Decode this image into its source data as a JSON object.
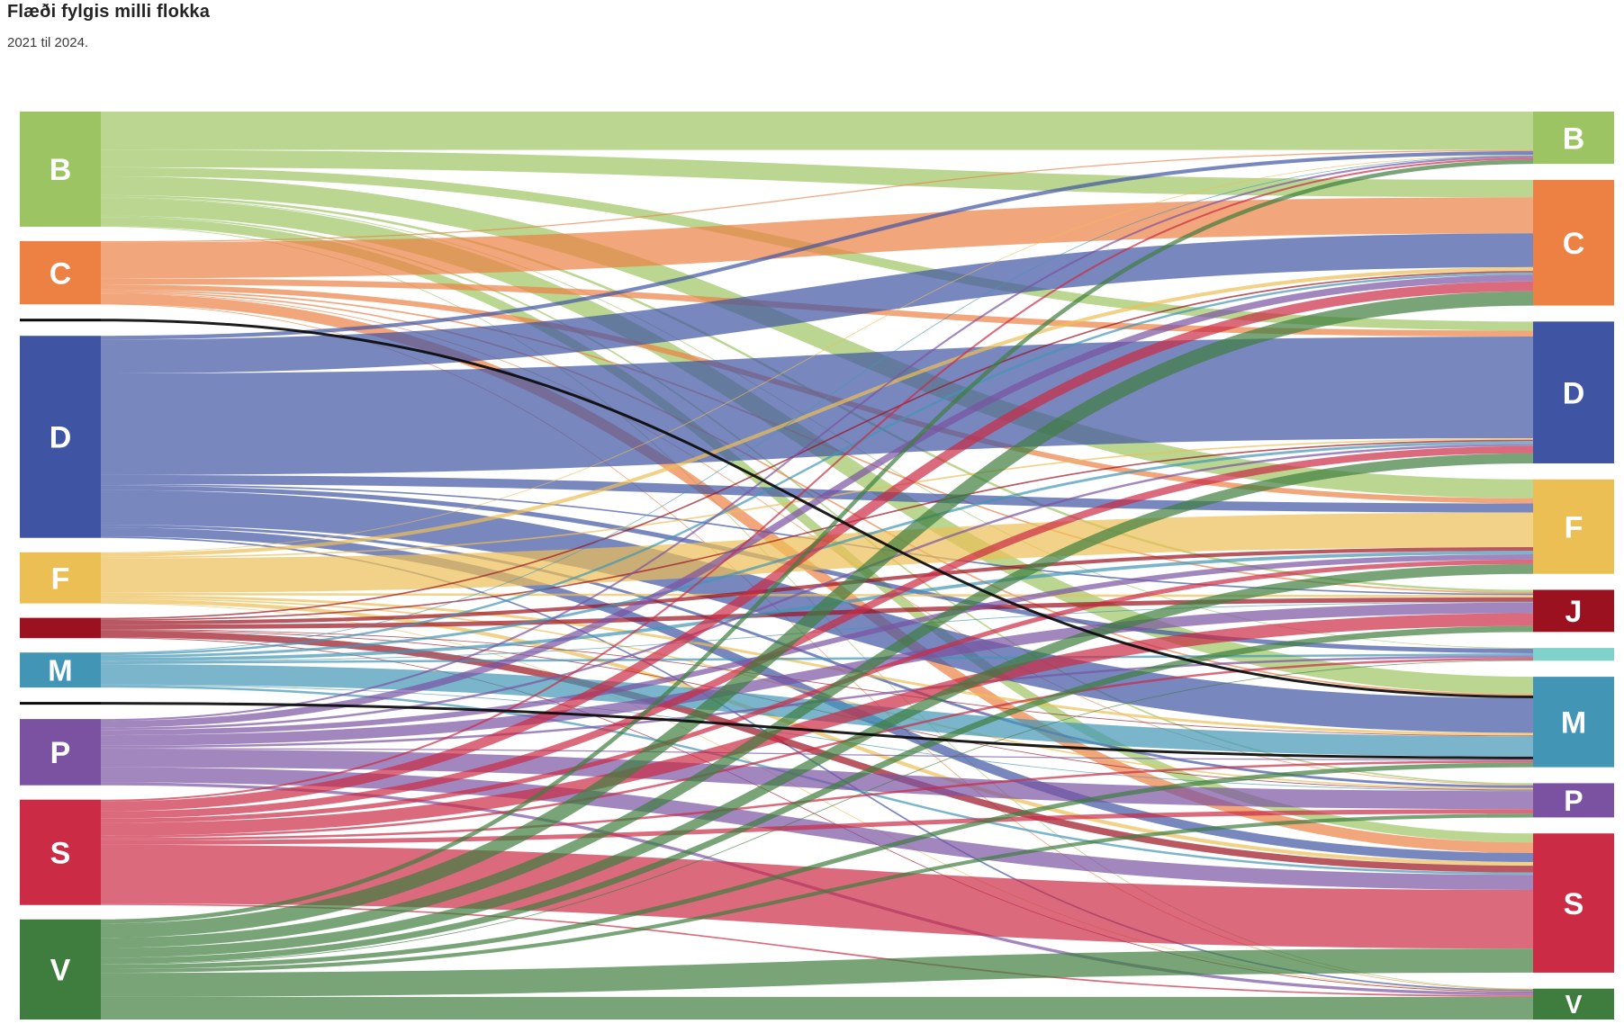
{
  "header": {
    "title": "Flæði fylgis milli flokka",
    "subtitle": "2021 til 2024."
  },
  "chart_data": {
    "type": "sankey",
    "description_left_column": "2021",
    "description_right_column": "2024",
    "left_nodes": [
      {
        "id": "B",
        "label": "B",
        "color": "#9cc462"
      },
      {
        "id": "C",
        "label": "C",
        "color": "#ed8043"
      },
      {
        "id": "X1",
        "label": "",
        "color": "#0a0a0a"
      },
      {
        "id": "D",
        "label": "D",
        "color": "#4054a4"
      },
      {
        "id": "F",
        "label": "F",
        "color": "#ecbf55"
      },
      {
        "id": "J",
        "label": "",
        "color": "#9c1120"
      },
      {
        "id": "M",
        "label": "M",
        "color": "#4295b5"
      },
      {
        "id": "X2",
        "label": "",
        "color": "#0a0a0a"
      },
      {
        "id": "P",
        "label": "P",
        "color": "#7b52a2"
      },
      {
        "id": "S",
        "label": "S",
        "color": "#cb2b44"
      },
      {
        "id": "V",
        "label": "V",
        "color": "#3e7d3e"
      }
    ],
    "right_nodes": [
      {
        "id": "B",
        "label": "B",
        "color": "#9cc462"
      },
      {
        "id": "C",
        "label": "C",
        "color": "#ed8043"
      },
      {
        "id": "D",
        "label": "D",
        "color": "#4054a4"
      },
      {
        "id": "F",
        "label": "F",
        "color": "#ecbf55"
      },
      {
        "id": "J",
        "label": "J",
        "color": "#9c1120"
      },
      {
        "id": "L",
        "label": "",
        "color": "#7fd2cb"
      },
      {
        "id": "M",
        "label": "M",
        "color": "#4295b5"
      },
      {
        "id": "P",
        "label": "P",
        "color": "#7b52a2"
      },
      {
        "id": "S",
        "label": "S",
        "color": "#cb2b44"
      },
      {
        "id": "V",
        "label": "V",
        "color": "#3e7d3e"
      }
    ],
    "links": [
      {
        "source": "B",
        "target": "B",
        "value": 5.1
      },
      {
        "source": "B",
        "target": "C",
        "value": 2.3
      },
      {
        "source": "B",
        "target": "D",
        "value": 1.2
      },
      {
        "source": "B",
        "target": "F",
        "value": 2.5
      },
      {
        "source": "B",
        "target": "J",
        "value": 0.3
      },
      {
        "source": "B",
        "target": "L",
        "value": 0.1
      },
      {
        "source": "B",
        "target": "M",
        "value": 2.3
      },
      {
        "source": "B",
        "target": "P",
        "value": 0.2
      },
      {
        "source": "B",
        "target": "S",
        "value": 1.2
      },
      {
        "source": "B",
        "target": "V",
        "value": 0.1
      },
      {
        "source": "C",
        "target": "B",
        "value": 0.15
      },
      {
        "source": "C",
        "target": "C",
        "value": 4.8
      },
      {
        "source": "C",
        "target": "D",
        "value": 0.8
      },
      {
        "source": "C",
        "target": "F",
        "value": 0.7
      },
      {
        "source": "C",
        "target": "J",
        "value": 0.2
      },
      {
        "source": "C",
        "target": "M",
        "value": 0.2
      },
      {
        "source": "C",
        "target": "P",
        "value": 0.1
      },
      {
        "source": "C",
        "target": "S",
        "value": 1.4
      },
      {
        "source": "C",
        "target": "V",
        "value": 0.05
      },
      {
        "source": "X1",
        "target": "M",
        "value": 0.36
      },
      {
        "source": "D",
        "target": "B",
        "value": 0.5
      },
      {
        "source": "D",
        "target": "C",
        "value": 4.5
      },
      {
        "source": "D",
        "target": "D",
        "value": 13.5
      },
      {
        "source": "D",
        "target": "F",
        "value": 1.2
      },
      {
        "source": "D",
        "target": "J",
        "value": 0.2
      },
      {
        "source": "D",
        "target": "L",
        "value": 0.6
      },
      {
        "source": "D",
        "target": "M",
        "value": 4.6
      },
      {
        "source": "D",
        "target": "P",
        "value": 0.35
      },
      {
        "source": "D",
        "target": "S",
        "value": 1.2
      },
      {
        "source": "D",
        "target": "V",
        "value": 0.2
      },
      {
        "source": "F",
        "target": "B",
        "value": 0.1
      },
      {
        "source": "F",
        "target": "C",
        "value": 0.5
      },
      {
        "source": "F",
        "target": "D",
        "value": 0.2
      },
      {
        "source": "F",
        "target": "F",
        "value": 4.6
      },
      {
        "source": "F",
        "target": "J",
        "value": 0.3
      },
      {
        "source": "F",
        "target": "M",
        "value": 0.35
      },
      {
        "source": "F",
        "target": "P",
        "value": 0.2
      },
      {
        "source": "F",
        "target": "S",
        "value": 0.5
      },
      {
        "source": "F",
        "target": "V",
        "value": 0.05
      },
      {
        "source": "J",
        "target": "C",
        "value": 0.2
      },
      {
        "source": "J",
        "target": "D",
        "value": 0.2
      },
      {
        "source": "J",
        "target": "F",
        "value": 0.5
      },
      {
        "source": "J",
        "target": "J",
        "value": 0.6
      },
      {
        "source": "J",
        "target": "M",
        "value": 0.1
      },
      {
        "source": "J",
        "target": "P",
        "value": 0.1
      },
      {
        "source": "J",
        "target": "S",
        "value": 0.9
      },
      {
        "source": "J",
        "target": "V",
        "value": 0.1
      },
      {
        "source": "M",
        "target": "B",
        "value": 0.05
      },
      {
        "source": "M",
        "target": "C",
        "value": 0.3
      },
      {
        "source": "M",
        "target": "D",
        "value": 0.35
      },
      {
        "source": "M",
        "target": "F",
        "value": 0.45
      },
      {
        "source": "M",
        "target": "J",
        "value": 0.1
      },
      {
        "source": "M",
        "target": "L",
        "value": 0.3
      },
      {
        "source": "M",
        "target": "M",
        "value": 2.7
      },
      {
        "source": "M",
        "target": "P",
        "value": 0.1
      },
      {
        "source": "M",
        "target": "S",
        "value": 0.3
      },
      {
        "source": "X2",
        "target": "M",
        "value": 0.36
      },
      {
        "source": "P",
        "target": "B",
        "value": 0.25
      },
      {
        "source": "P",
        "target": "C",
        "value": 0.9
      },
      {
        "source": "P",
        "target": "D",
        "value": 0.3
      },
      {
        "source": "P",
        "target": "F",
        "value": 0.7
      },
      {
        "source": "P",
        "target": "J",
        "value": 1.4
      },
      {
        "source": "P",
        "target": "L",
        "value": 0.3
      },
      {
        "source": "P",
        "target": "M",
        "value": 0.15
      },
      {
        "source": "P",
        "target": "P",
        "value": 2.4
      },
      {
        "source": "P",
        "target": "S",
        "value": 2.0
      },
      {
        "source": "P",
        "target": "V",
        "value": 0.4
      },
      {
        "source": "S",
        "target": "B",
        "value": 0.25
      },
      {
        "source": "S",
        "target": "C",
        "value": 1.3
      },
      {
        "source": "S",
        "target": "D",
        "value": 0.95
      },
      {
        "source": "S",
        "target": "F",
        "value": 0.6
      },
      {
        "source": "S",
        "target": "J",
        "value": 1.7
      },
      {
        "source": "S",
        "target": "L",
        "value": 0.3
      },
      {
        "source": "S",
        "target": "M",
        "value": 0.3
      },
      {
        "source": "S",
        "target": "P",
        "value": 0.6
      },
      {
        "source": "S",
        "target": "S",
        "value": 7.8
      },
      {
        "source": "S",
        "target": "V",
        "value": 0.2
      },
      {
        "source": "V",
        "target": "B",
        "value": 0.55
      },
      {
        "source": "V",
        "target": "C",
        "value": 1.9
      },
      {
        "source": "V",
        "target": "D",
        "value": 1.35
      },
      {
        "source": "V",
        "target": "F",
        "value": 1.3
      },
      {
        "source": "V",
        "target": "J",
        "value": 0.8
      },
      {
        "source": "V",
        "target": "L",
        "value": 0.1
      },
      {
        "source": "V",
        "target": "M",
        "value": 0.6
      },
      {
        "source": "V",
        "target": "P",
        "value": 0.5
      },
      {
        "source": "V",
        "target": "S",
        "value": 3.2
      },
      {
        "source": "V",
        "target": "V",
        "value": 3.0
      }
    ],
    "link_opacity": 0.7,
    "black_link_opacity": 0.92
  }
}
